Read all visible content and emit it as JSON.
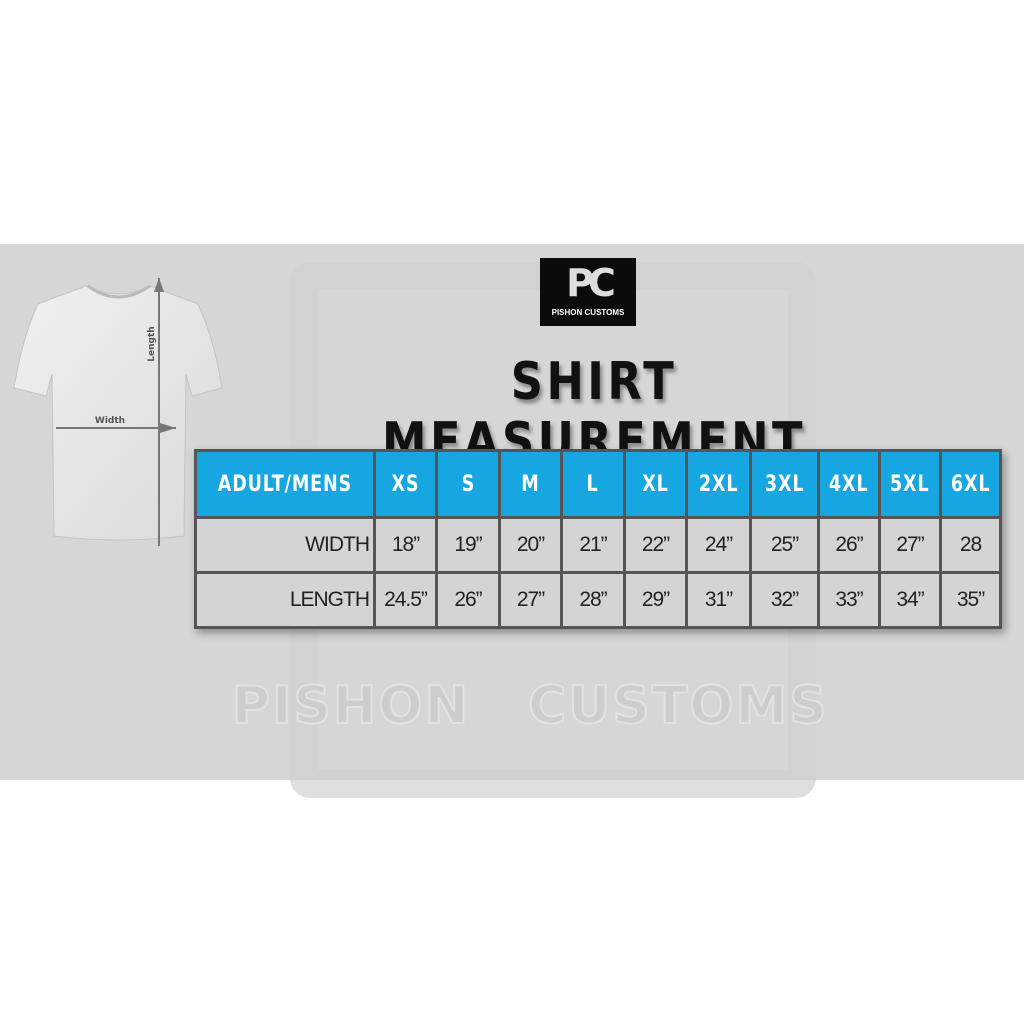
{
  "brand": {
    "logo_text": "PISHON CUSTOMS",
    "watermark_left": "PISHON",
    "watermark_right": "CUSTOMS"
  },
  "title": "SHIRT MEASUREMENT",
  "shirt": {
    "length_label": "Length",
    "width_label": "Width"
  },
  "colors": {
    "header": "#16a6e2",
    "cell": "#d4d4d4",
    "border": "#555555",
    "background": "#d6d6d6"
  },
  "table": {
    "headers": [
      "ADULT/MENS",
      "XS",
      "S",
      "M",
      "L",
      "XL",
      "2XL",
      "3XL",
      "4XL",
      "5XL",
      "6XL"
    ],
    "rows": [
      {
        "label": "WIDTH",
        "values": [
          "18”",
          "19”",
          "20”",
          "21”",
          "22”",
          "24”",
          "25”",
          "26”",
          "27”",
          "28"
        ]
      },
      {
        "label": "LENGTH",
        "values": [
          "24.5”",
          "26”",
          "27”",
          "28”",
          "29”",
          "31”",
          "32”",
          "33”",
          "34”",
          "35”"
        ]
      }
    ]
  }
}
